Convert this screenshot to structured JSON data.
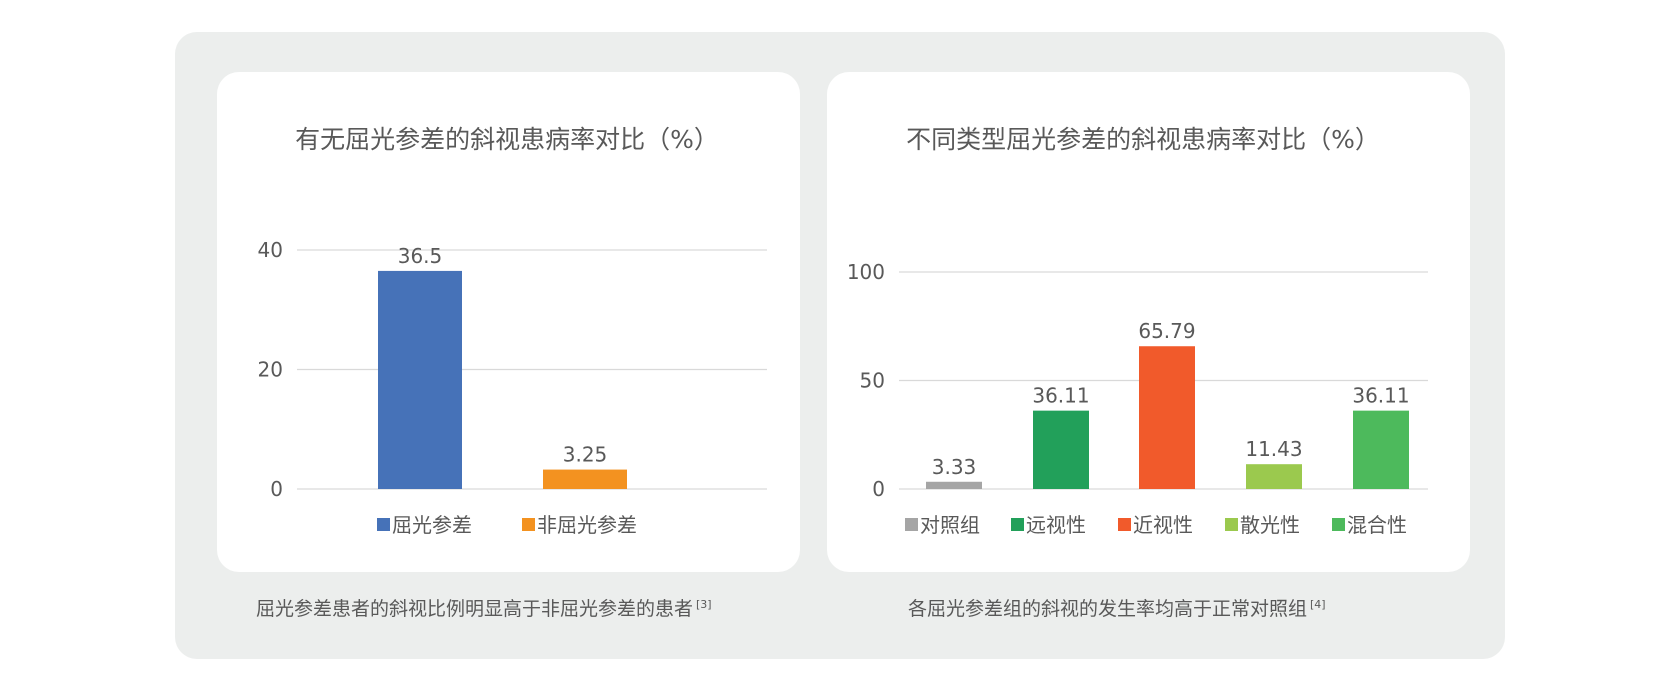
{
  "colors": {
    "panel_bg": "#eceeed",
    "card_bg": "#ffffff",
    "text": "#595959",
    "grid": "#d9d9d9"
  },
  "chart_data": [
    {
      "type": "bar",
      "title": "有无屈光参差的斜视患病率对比（%）",
      "categories": [
        "屈光参差",
        "非屈光参差"
      ],
      "values": [
        36.5,
        3.25
      ],
      "value_labels": [
        "36.5",
        "3.25"
      ],
      "colors": [
        "#4672b8",
        "#f39220"
      ],
      "ylim": [
        0,
        40
      ],
      "yticks": [
        0,
        20,
        40
      ],
      "grid": true,
      "legend": "bottom",
      "caption": "屈光参差患者的斜视比例明显高于非屈光参差的患者",
      "ref": "[3]"
    },
    {
      "type": "bar",
      "title": "不同类型屈光参差的斜视患病率对比（%）",
      "categories": [
        "对照组",
        "远视性",
        "近视性",
        "散光性",
        "混合性"
      ],
      "values": [
        3.33,
        36.11,
        65.79,
        11.43,
        36.11
      ],
      "value_labels": [
        "3.33",
        "36.11",
        "65.79",
        "11.43",
        "36.11"
      ],
      "colors": [
        "#a5a5a5",
        "#22a05a",
        "#f15a2b",
        "#9bc94e",
        "#4dba5c"
      ],
      "ylim": [
        0,
        100
      ],
      "yticks": [
        0,
        50,
        100
      ],
      "grid": true,
      "legend": "bottom",
      "caption": "各屈光参差组的斜视的发生率均高于正常对照组",
      "ref": "[4]"
    }
  ]
}
